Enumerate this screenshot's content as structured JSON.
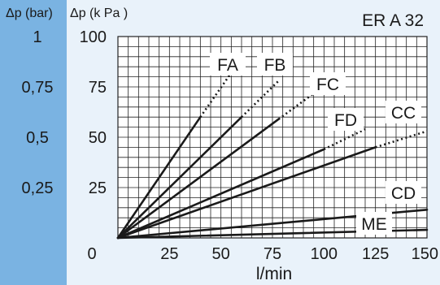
{
  "chart_data": {
    "type": "line",
    "title": "ER A 32",
    "xlabel": "l/min",
    "ylabel": "Δp (k Pa )",
    "ylabel_secondary": "Δp (bar)",
    "xlim": [
      0,
      150
    ],
    "ylim": [
      0,
      100
    ],
    "x_ticks": [
      0,
      25,
      50,
      75,
      100,
      125,
      150
    ],
    "x_tick_labels": [
      "0",
      "25",
      "50",
      "75",
      "100",
      "125",
      "150"
    ],
    "y_ticks": [
      100,
      75,
      50,
      25
    ],
    "y_tick_labels": [
      "100",
      "75",
      "50",
      "25"
    ],
    "y_ticks_secondary": [
      100,
      75,
      50,
      25
    ],
    "y_tick_labels_secondary": [
      "1",
      "0,75",
      "0,5",
      "0,25"
    ],
    "grid": true,
    "series": [
      {
        "name": "FA",
        "solid": [
          [
            0,
            0
          ],
          [
            40,
            60
          ]
        ],
        "dotted": [
          [
            40,
            60
          ],
          [
            55,
            82
          ]
        ]
      },
      {
        "name": "FB",
        "solid": [
          [
            0,
            0
          ],
          [
            60,
            60
          ]
        ],
        "dotted": [
          [
            60,
            60
          ],
          [
            78,
            78
          ]
        ]
      },
      {
        "name": "FC",
        "solid": [
          [
            0,
            0
          ],
          [
            78,
            59
          ]
        ],
        "dotted": [
          [
            78,
            59
          ],
          [
            98,
            74
          ]
        ]
      },
      {
        "name": "FD",
        "solid": [
          [
            0,
            0
          ],
          [
            100,
            44
          ]
        ],
        "dotted": [
          [
            100,
            44
          ],
          [
            120,
            54
          ]
        ]
      },
      {
        "name": "CC",
        "solid": [
          [
            0,
            0
          ],
          [
            125,
            45
          ]
        ],
        "dotted": [
          [
            125,
            45
          ],
          [
            150,
            53
          ]
        ]
      },
      {
        "name": "CD",
        "solid": [
          [
            0,
            0
          ],
          [
            150,
            14
          ]
        ]
      },
      {
        "name": "ME",
        "solid": [
          [
            0,
            0
          ],
          [
            150,
            4
          ]
        ]
      }
    ]
  }
}
